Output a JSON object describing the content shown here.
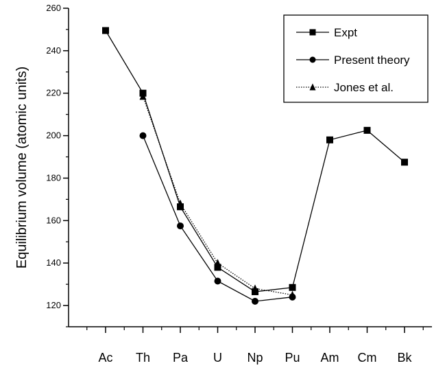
{
  "chart_data": {
    "type": "line",
    "title": "",
    "xlabel": "",
    "ylabel": "Equilibrium volume (atomic units)",
    "categories": [
      "Ac",
      "Th",
      "Pa",
      "U",
      "Np",
      "Pu",
      "Am",
      "Cm",
      "Bk"
    ],
    "ylim": [
      110,
      260
    ],
    "yticks": [
      120,
      140,
      160,
      180,
      200,
      220,
      240,
      260
    ],
    "grid": false,
    "legend_position": "top-right",
    "series": [
      {
        "name": "Expt",
        "marker": "square",
        "line_style": "solid",
        "values": [
          249.5,
          220,
          166.5,
          138,
          126.5,
          128.5,
          198,
          202.5,
          187.5
        ]
      },
      {
        "name": "Present theory",
        "marker": "circle",
        "line_style": "solid",
        "values": [
          null,
          200,
          157.5,
          131.5,
          122,
          124,
          null,
          null,
          null
        ]
      },
      {
        "name": "Jones et al.",
        "marker": "triangle",
        "line_style": "dotted",
        "values": [
          null,
          218.5,
          168,
          140,
          128,
          125,
          null,
          null,
          null
        ]
      }
    ]
  },
  "colors": {
    "ink": "#000000",
    "background": "#ffffff"
  }
}
